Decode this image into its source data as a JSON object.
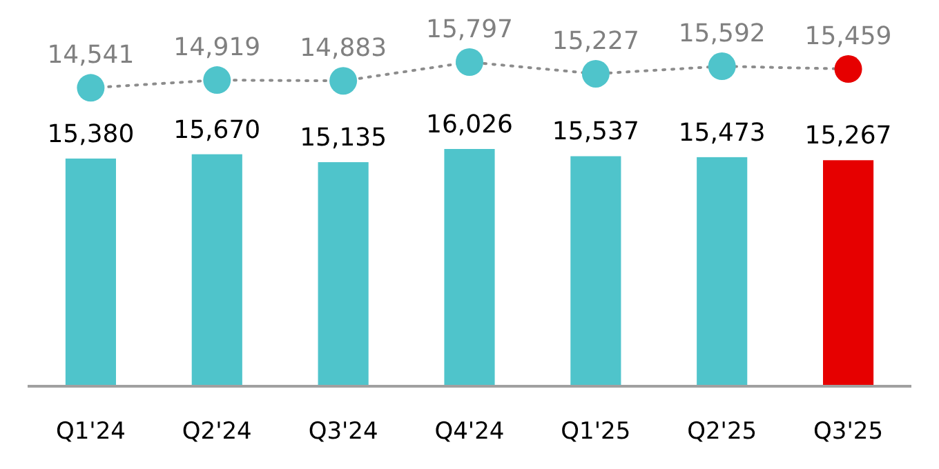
{
  "chart_data": [
    {
      "type": "line",
      "categories": [
        null,
        null,
        null,
        null,
        null,
        null,
        null
      ],
      "marker": "circle",
      "line_style": "dotted",
      "series": [
        {
          "color": "#8c8c8c",
          "colors": [
            "#4fc4cb",
            "#4fc4cb",
            "#4fc4cb",
            "#4fc4cb",
            "#4fc4cb",
            "#4fc4cb",
            "#e60000"
          ],
          "values": [
            14541,
            14919,
            14883,
            15797,
            15227,
            15592,
            15459
          ],
          "value_labels": [
            "14,541",
            "14,919",
            "14,883",
            "15,797",
            "15,227",
            "15,592",
            "15,459"
          ]
        }
      ]
    },
    {
      "type": "bar",
      "categories": [
        "Q1'24",
        "Q2'24",
        "Q3'24",
        "Q4'24",
        "Q1'25",
        "Q2'25",
        "Q3'25"
      ],
      "tick_labels": "x",
      "series": [
        {
          "colors": [
            "#4fc4cb",
            "#4fc4cb",
            "#4fc4cb",
            "#4fc4cb",
            "#4fc4cb",
            "#4fc4cb",
            "#e60000"
          ],
          "values": [
            15380,
            15670,
            15135,
            16026,
            15537,
            15473,
            15267
          ],
          "value_labels": [
            "15,380",
            "15,670",
            "15,135",
            "16,026",
            "15,537",
            "15,473",
            "15,267"
          ]
        }
      ]
    }
  ]
}
